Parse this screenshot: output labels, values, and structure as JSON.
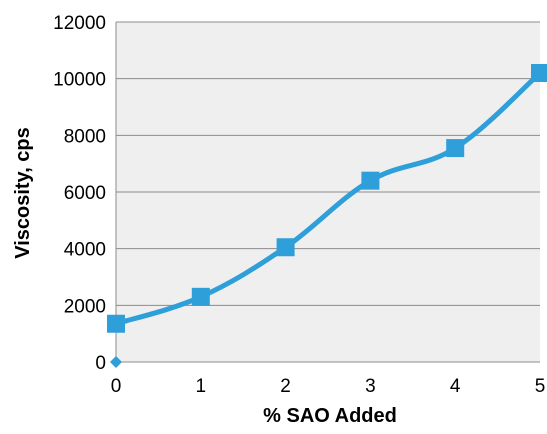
{
  "chart_data": {
    "type": "line",
    "title": "",
    "xlabel": "% SAO Added",
    "ylabel": "Viscosity, cps",
    "x": [
      0,
      1,
      2,
      3,
      4,
      5
    ],
    "series": [
      {
        "values": [
          1350,
          2300,
          4050,
          6400,
          7550,
          10200
        ]
      }
    ],
    "xlim": [
      0,
      5
    ],
    "ylim": [
      0,
      12000
    ],
    "x_ticks": [
      "0",
      "1",
      "2",
      "3",
      "4",
      "5"
    ],
    "y_ticks": [
      "0",
      "2000",
      "4000",
      "6000",
      "8000",
      "10000",
      "12000"
    ],
    "grid": "horizontal",
    "legend": "none",
    "extra_point": {
      "x": 0,
      "y": 0,
      "marker": "diamond"
    },
    "colors": {
      "series": "#2e9fd9",
      "plot_background": "#efefef",
      "grid": "#8c8c8c"
    }
  }
}
